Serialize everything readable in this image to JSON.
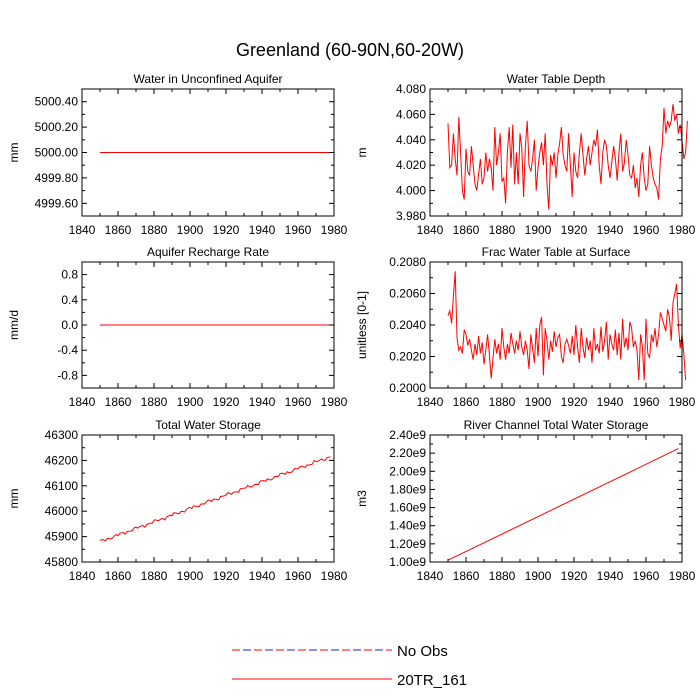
{
  "title": "Greenland (60-90N,60-20W)",
  "legend": {
    "entries": [
      {
        "label": "No Obs",
        "style": "dashed",
        "color": "#ff0000",
        "alt_color": "#1f1fbf"
      },
      {
        "label": "20TR_161",
        "style": "solid",
        "color": "#ff0000"
      }
    ]
  },
  "chart_data": [
    {
      "type": "line",
      "title": "Water in Unconfined Aquifer",
      "ylabel": "mm",
      "xlim": [
        1840,
        1980
      ],
      "ylim": [
        4999.5,
        5000.5
      ],
      "xticks": [
        1840,
        1860,
        1880,
        1900,
        1920,
        1940,
        1960,
        1980
      ],
      "yticks": [
        4999.6,
        4999.8,
        5000.0,
        5000.2,
        5000.4
      ],
      "ytick_labels": [
        "4999.60",
        "4999.80",
        "5000.00",
        "5000.20",
        "5000.40"
      ],
      "series": {
        "name": "20TR_161",
        "mode": "linear",
        "x": [
          1850,
          1978
        ],
        "values": [
          5000.0,
          5000.0
        ]
      }
    },
    {
      "type": "line",
      "title": "Water Table Depth",
      "ylabel": "m",
      "xlim": [
        1840,
        1980
      ],
      "ylim": [
        3.98,
        4.08
      ],
      "xticks": [
        1840,
        1860,
        1880,
        1900,
        1920,
        1940,
        1960,
        1980
      ],
      "yticks": [
        3.98,
        4.0,
        4.02,
        4.04,
        4.06,
        4.08
      ],
      "ytick_labels": [
        "3.980",
        "4.000",
        "4.020",
        "4.040",
        "4.060",
        "4.080"
      ],
      "series": {
        "name": "20TR_161",
        "mode": "annual",
        "x0": 1850,
        "values": [
          4.053,
          4.018,
          4.02,
          4.045,
          4.025,
          4.012,
          4.058,
          4.03,
          4.0,
          3.993,
          4.033,
          4.015,
          4.012,
          4.035,
          4.02,
          4.005,
          4.0,
          4.013,
          4.025,
          4.005,
          4.01,
          4.03,
          4.015,
          4.025,
          4.018,
          4.0,
          4.05,
          4.02,
          4.03,
          4.045,
          4.007,
          4.01,
          3.99,
          4.03,
          4.05,
          4.018,
          4.052,
          4.005,
          4.03,
          4.005,
          4.045,
          4.033,
          3.995,
          4.035,
          4.055,
          4.02,
          4.015,
          4.025,
          4.04,
          4.0,
          4.018,
          4.03,
          4.038,
          4.02,
          4.045,
          4.005,
          3.985,
          4.028,
          4.02,
          4.03,
          4.01,
          4.028,
          4.037,
          4.05,
          4.028,
          4.02,
          4.015,
          4.045,
          4.02,
          3.995,
          4.03,
          4.015,
          4.01,
          4.03,
          4.045,
          4.028,
          4.012,
          4.025,
          4.035,
          4.02,
          4.03,
          4.04,
          4.035,
          4.048,
          4.02,
          4.005,
          4.03,
          4.04,
          4.035,
          4.02,
          4.01,
          4.022,
          4.035,
          4.025,
          4.008,
          4.03,
          4.045,
          4.015,
          4.022,
          4.04,
          4.028,
          4.012,
          4.01,
          4.02,
          4.002,
          4.01,
          3.995,
          4.02,
          4.03,
          4.01,
          4.0,
          4.005,
          4.035,
          4.02,
          4.01,
          4.005,
          4.002,
          3.993,
          4.025,
          4.035,
          4.065,
          4.045,
          4.055,
          4.05,
          4.055,
          4.068,
          4.055,
          4.06,
          4.045,
          4.052,
          4.04,
          4.025,
          4.03,
          4.055
        ]
      }
    },
    {
      "type": "line",
      "title": "Aquifer Recharge Rate",
      "ylabel": "mm/d",
      "xlim": [
        1840,
        1980
      ],
      "ylim": [
        -1.0,
        1.0
      ],
      "xticks": [
        1840,
        1860,
        1880,
        1900,
        1920,
        1940,
        1960,
        1980
      ],
      "yticks": [
        -0.8,
        -0.4,
        0.0,
        0.4,
        0.8
      ],
      "ytick_labels": [
        "-0.8",
        "-0.4",
        "0.0",
        "0.4",
        "0.8"
      ],
      "series": {
        "name": "20TR_161",
        "mode": "linear",
        "x": [
          1850,
          1978
        ],
        "values": [
          0.0,
          0.0
        ]
      }
    },
    {
      "type": "line",
      "title": "Frac Water Table at Surface",
      "ylabel": "unitless [0-1]",
      "xlim": [
        1840,
        1980
      ],
      "ylim": [
        0.2,
        0.208
      ],
      "xticks": [
        1840,
        1860,
        1880,
        1900,
        1920,
        1940,
        1960,
        1980
      ],
      "yticks": [
        0.2,
        0.202,
        0.204,
        0.206,
        0.208
      ],
      "ytick_labels": [
        "0.2000",
        "0.2020",
        "0.2040",
        "0.2060",
        "0.2080"
      ],
      "series": {
        "name": "20TR_161",
        "mode": "annual",
        "x0": 1850,
        "values": [
          0.2046,
          0.2049,
          0.2041,
          0.2058,
          0.2074,
          0.2032,
          0.2024,
          0.2026,
          0.2022,
          0.2037,
          0.2034,
          0.2027,
          0.2031,
          0.2024,
          0.2018,
          0.2028,
          0.2021,
          0.2033,
          0.2022,
          0.2029,
          0.2015,
          0.2024,
          0.2034,
          0.2021,
          0.2006,
          0.2019,
          0.2031,
          0.2022,
          0.2028,
          0.2018,
          0.2038,
          0.2026,
          0.2018,
          0.2028,
          0.2022,
          0.2035,
          0.2028,
          0.2022,
          0.203,
          0.2024,
          0.2036,
          0.2026,
          0.2021,
          0.203,
          0.2024,
          0.2012,
          0.2034,
          0.2025,
          0.2016,
          0.2038,
          0.202,
          0.204,
          0.2045,
          0.2008,
          0.2038,
          0.203,
          0.2018,
          0.203,
          0.2023,
          0.2036,
          0.2026,
          0.2032,
          0.2034,
          0.202,
          0.2016,
          0.2028,
          0.2031,
          0.2027,
          0.2022,
          0.2033,
          0.2021,
          0.204,
          0.2026,
          0.2016,
          0.2038,
          0.2026,
          0.2019,
          0.2032,
          0.2024,
          0.203,
          0.2016,
          0.2038,
          0.2024,
          0.2028,
          0.2022,
          0.2039,
          0.2023,
          0.203,
          0.2042,
          0.2018,
          0.2034,
          0.2028,
          0.2024,
          0.2037,
          0.2021,
          0.2035,
          0.2018,
          0.2044,
          0.2026,
          0.2032,
          0.2024,
          0.2042,
          0.2038,
          0.2026,
          0.203,
          0.2024,
          0.2005,
          0.2034,
          0.2026,
          0.2005,
          0.2044,
          0.2022,
          0.2019,
          0.2034,
          0.2029,
          0.2038,
          0.2026,
          0.2034,
          0.2048,
          0.2044,
          0.204,
          0.2036,
          0.205,
          0.2045,
          0.203,
          0.2054,
          0.206,
          0.2066,
          0.204,
          0.2025,
          0.2034,
          0.2022,
          0.2005
        ]
      }
    },
    {
      "type": "line",
      "title": "Total Water Storage",
      "ylabel": "mm",
      "xlim": [
        1840,
        1980
      ],
      "ylim": [
        45800,
        46300
      ],
      "xticks": [
        1840,
        1860,
        1880,
        1900,
        1920,
        1940,
        1960,
        1980
      ],
      "yticks": [
        45800,
        45900,
        46000,
        46100,
        46200,
        46300
      ],
      "ytick_labels": [
        "45800",
        "45900",
        "46000",
        "46100",
        "46200",
        "46300"
      ],
      "series": {
        "name": "20TR_161",
        "mode": "trend",
        "x": [
          1850,
          1978
        ],
        "values": [
          45880,
          46215
        ]
      }
    },
    {
      "type": "line",
      "title": "River Channel Total Water Storage",
      "ylabel": "m3",
      "xlim": [
        1840,
        1980
      ],
      "ylim": [
        1000000000.0,
        2400000000.0
      ],
      "xticks": [
        1840,
        1860,
        1880,
        1900,
        1920,
        1940,
        1960,
        1980
      ],
      "yticks": [
        1000000000.0,
        1200000000.0,
        1400000000.0,
        1600000000.0,
        1800000000.0,
        2000000000.0,
        2200000000.0,
        2400000000.0
      ],
      "ytick_labels": [
        "1.00e9",
        "1.20e9",
        "1.40e9",
        "1.60e9",
        "1.80e9",
        "2.00e9",
        "2.20e9",
        "2.40e9"
      ],
      "series": {
        "name": "20TR_161",
        "mode": "linear",
        "x": [
          1850,
          1978
        ],
        "values": [
          1020000000.0,
          2250000000.0
        ]
      }
    }
  ]
}
